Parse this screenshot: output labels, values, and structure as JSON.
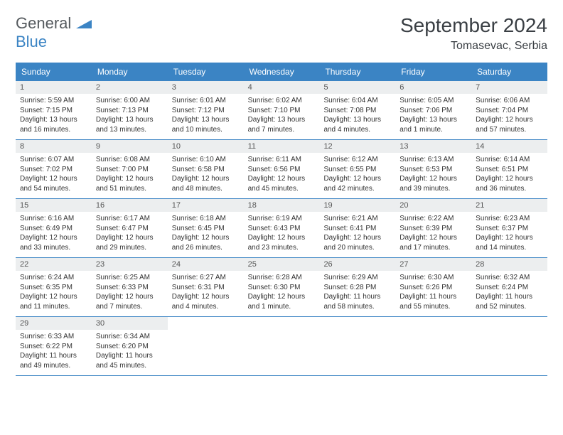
{
  "logo": {
    "word1": "General",
    "word2": "Blue"
  },
  "title": "September 2024",
  "location": "Tomasevac, Serbia",
  "colors": {
    "header_bg": "#3b84c4",
    "header_text": "#ffffff",
    "daynum_bg": "#eceeef",
    "border": "#3b84c4",
    "body_text": "#333333",
    "title_text": "#3a3f44"
  },
  "weekdays": [
    "Sunday",
    "Monday",
    "Tuesday",
    "Wednesday",
    "Thursday",
    "Friday",
    "Saturday"
  ],
  "weeks": [
    [
      {
        "n": "1",
        "sr": "Sunrise: 5:59 AM",
        "ss": "Sunset: 7:15 PM",
        "d1": "Daylight: 13 hours",
        "d2": "and 16 minutes."
      },
      {
        "n": "2",
        "sr": "Sunrise: 6:00 AM",
        "ss": "Sunset: 7:13 PM",
        "d1": "Daylight: 13 hours",
        "d2": "and 13 minutes."
      },
      {
        "n": "3",
        "sr": "Sunrise: 6:01 AM",
        "ss": "Sunset: 7:12 PM",
        "d1": "Daylight: 13 hours",
        "d2": "and 10 minutes."
      },
      {
        "n": "4",
        "sr": "Sunrise: 6:02 AM",
        "ss": "Sunset: 7:10 PM",
        "d1": "Daylight: 13 hours",
        "d2": "and 7 minutes."
      },
      {
        "n": "5",
        "sr": "Sunrise: 6:04 AM",
        "ss": "Sunset: 7:08 PM",
        "d1": "Daylight: 13 hours",
        "d2": "and 4 minutes."
      },
      {
        "n": "6",
        "sr": "Sunrise: 6:05 AM",
        "ss": "Sunset: 7:06 PM",
        "d1": "Daylight: 13 hours",
        "d2": "and 1 minute."
      },
      {
        "n": "7",
        "sr": "Sunrise: 6:06 AM",
        "ss": "Sunset: 7:04 PM",
        "d1": "Daylight: 12 hours",
        "d2": "and 57 minutes."
      }
    ],
    [
      {
        "n": "8",
        "sr": "Sunrise: 6:07 AM",
        "ss": "Sunset: 7:02 PM",
        "d1": "Daylight: 12 hours",
        "d2": "and 54 minutes."
      },
      {
        "n": "9",
        "sr": "Sunrise: 6:08 AM",
        "ss": "Sunset: 7:00 PM",
        "d1": "Daylight: 12 hours",
        "d2": "and 51 minutes."
      },
      {
        "n": "10",
        "sr": "Sunrise: 6:10 AM",
        "ss": "Sunset: 6:58 PM",
        "d1": "Daylight: 12 hours",
        "d2": "and 48 minutes."
      },
      {
        "n": "11",
        "sr": "Sunrise: 6:11 AM",
        "ss": "Sunset: 6:56 PM",
        "d1": "Daylight: 12 hours",
        "d2": "and 45 minutes."
      },
      {
        "n": "12",
        "sr": "Sunrise: 6:12 AM",
        "ss": "Sunset: 6:55 PM",
        "d1": "Daylight: 12 hours",
        "d2": "and 42 minutes."
      },
      {
        "n": "13",
        "sr": "Sunrise: 6:13 AM",
        "ss": "Sunset: 6:53 PM",
        "d1": "Daylight: 12 hours",
        "d2": "and 39 minutes."
      },
      {
        "n": "14",
        "sr": "Sunrise: 6:14 AM",
        "ss": "Sunset: 6:51 PM",
        "d1": "Daylight: 12 hours",
        "d2": "and 36 minutes."
      }
    ],
    [
      {
        "n": "15",
        "sr": "Sunrise: 6:16 AM",
        "ss": "Sunset: 6:49 PM",
        "d1": "Daylight: 12 hours",
        "d2": "and 33 minutes."
      },
      {
        "n": "16",
        "sr": "Sunrise: 6:17 AM",
        "ss": "Sunset: 6:47 PM",
        "d1": "Daylight: 12 hours",
        "d2": "and 29 minutes."
      },
      {
        "n": "17",
        "sr": "Sunrise: 6:18 AM",
        "ss": "Sunset: 6:45 PM",
        "d1": "Daylight: 12 hours",
        "d2": "and 26 minutes."
      },
      {
        "n": "18",
        "sr": "Sunrise: 6:19 AM",
        "ss": "Sunset: 6:43 PM",
        "d1": "Daylight: 12 hours",
        "d2": "and 23 minutes."
      },
      {
        "n": "19",
        "sr": "Sunrise: 6:21 AM",
        "ss": "Sunset: 6:41 PM",
        "d1": "Daylight: 12 hours",
        "d2": "and 20 minutes."
      },
      {
        "n": "20",
        "sr": "Sunrise: 6:22 AM",
        "ss": "Sunset: 6:39 PM",
        "d1": "Daylight: 12 hours",
        "d2": "and 17 minutes."
      },
      {
        "n": "21",
        "sr": "Sunrise: 6:23 AM",
        "ss": "Sunset: 6:37 PM",
        "d1": "Daylight: 12 hours",
        "d2": "and 14 minutes."
      }
    ],
    [
      {
        "n": "22",
        "sr": "Sunrise: 6:24 AM",
        "ss": "Sunset: 6:35 PM",
        "d1": "Daylight: 12 hours",
        "d2": "and 11 minutes."
      },
      {
        "n": "23",
        "sr": "Sunrise: 6:25 AM",
        "ss": "Sunset: 6:33 PM",
        "d1": "Daylight: 12 hours",
        "d2": "and 7 minutes."
      },
      {
        "n": "24",
        "sr": "Sunrise: 6:27 AM",
        "ss": "Sunset: 6:31 PM",
        "d1": "Daylight: 12 hours",
        "d2": "and 4 minutes."
      },
      {
        "n": "25",
        "sr": "Sunrise: 6:28 AM",
        "ss": "Sunset: 6:30 PM",
        "d1": "Daylight: 12 hours",
        "d2": "and 1 minute."
      },
      {
        "n": "26",
        "sr": "Sunrise: 6:29 AM",
        "ss": "Sunset: 6:28 PM",
        "d1": "Daylight: 11 hours",
        "d2": "and 58 minutes."
      },
      {
        "n": "27",
        "sr": "Sunrise: 6:30 AM",
        "ss": "Sunset: 6:26 PM",
        "d1": "Daylight: 11 hours",
        "d2": "and 55 minutes."
      },
      {
        "n": "28",
        "sr": "Sunrise: 6:32 AM",
        "ss": "Sunset: 6:24 PM",
        "d1": "Daylight: 11 hours",
        "d2": "and 52 minutes."
      }
    ],
    [
      {
        "n": "29",
        "sr": "Sunrise: 6:33 AM",
        "ss": "Sunset: 6:22 PM",
        "d1": "Daylight: 11 hours",
        "d2": "and 49 minutes."
      },
      {
        "n": "30",
        "sr": "Sunrise: 6:34 AM",
        "ss": "Sunset: 6:20 PM",
        "d1": "Daylight: 11 hours",
        "d2": "and 45 minutes."
      },
      null,
      null,
      null,
      null,
      null
    ]
  ]
}
